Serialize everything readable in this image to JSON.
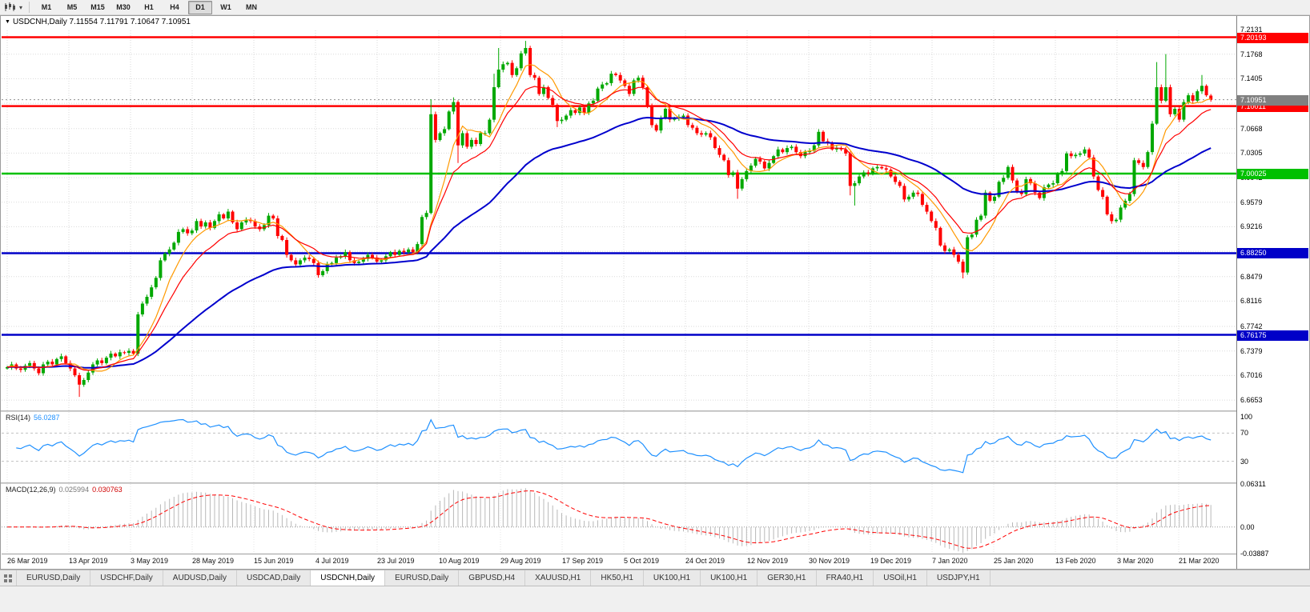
{
  "toolbar": {
    "timeframes": [
      {
        "label": "M1",
        "active": false
      },
      {
        "label": "M5",
        "active": false
      },
      {
        "label": "M15",
        "active": false
      },
      {
        "label": "M30",
        "active": false
      },
      {
        "label": "H1",
        "active": false
      },
      {
        "label": "H4",
        "active": false
      },
      {
        "label": "D1",
        "active": true
      },
      {
        "label": "W1",
        "active": false
      },
      {
        "label": "MN",
        "active": false
      }
    ]
  },
  "chart": {
    "ohlc_header": "USDCNH,Daily 7.11554 7.11791 7.10647 7.10951"
  },
  "chart_data": {
    "type": "candlestick",
    "symbol": "USDCNH",
    "timeframe": "Daily",
    "ohlc_display": {
      "open": "7.11554",
      "high": "7.11791",
      "low": "7.10647",
      "close": "7.10951"
    },
    "ylim": [
      6.65,
      7.212
    ],
    "y_ticks": [
      "7.2131",
      "7.1768",
      "7.1405",
      "7.1042",
      "7.0668",
      "7.0305",
      "6.9942",
      "6.9579",
      "6.9216",
      "6.8853",
      "6.8479",
      "6.8116",
      "6.7742",
      "6.7379",
      "6.7016",
      "6.6653"
    ],
    "x_labels": [
      "26 Mar 2019",
      "13 Apr 2019",
      "3 May 2019",
      "28 May 2019",
      "15 Jun 2019",
      "4 Jul 2019",
      "23 Jul 2019",
      "10 Aug 2019",
      "29 Aug 2019",
      "17 Sep 2019",
      "5 Oct 2019",
      "24 Oct 2019",
      "12 Nov 2019",
      "30 Nov 2019",
      "19 Dec 2019",
      "7 Jan 2020",
      "25 Jan 2020",
      "13 Feb 2020",
      "3 Mar 2020",
      "21 Mar 2020"
    ],
    "open_first": 6.712,
    "closes": [
      6.714,
      6.718,
      6.712,
      6.71,
      6.716,
      6.72,
      6.712,
      6.705,
      6.718,
      6.722,
      6.718,
      6.726,
      6.73,
      6.72,
      6.712,
      6.702,
      6.688,
      6.695,
      6.706,
      6.718,
      6.724,
      6.72,
      6.728,
      6.734,
      6.73,
      6.736,
      6.735,
      6.738,
      6.734,
      6.792,
      6.808,
      6.818,
      6.832,
      6.846,
      6.872,
      6.882,
      6.888,
      6.898,
      6.914,
      6.918,
      6.912,
      6.916,
      6.93,
      6.922,
      6.928,
      6.92,
      6.93,
      6.94,
      6.934,
      6.944,
      6.928,
      6.918,
      6.928,
      6.932,
      6.93,
      6.922,
      6.918,
      6.924,
      6.938,
      6.934,
      6.908,
      6.902,
      6.88,
      6.872,
      6.866,
      6.872,
      6.876,
      6.874,
      6.868,
      6.85,
      6.856,
      6.866,
      6.868,
      6.876,
      6.878,
      6.884,
      6.872,
      6.868,
      6.87,
      6.874,
      6.88,
      6.876,
      6.87,
      6.872,
      6.878,
      6.884,
      6.88,
      6.886,
      6.884,
      6.888,
      6.884,
      6.896,
      6.936,
      6.942,
      7.088,
      7.05,
      7.06,
      7.066,
      7.092,
      7.106,
      7.042,
      7.06,
      7.04,
      7.05,
      7.044,
      7.06,
      7.06,
      7.08,
      7.128,
      7.154,
      7.162,
      7.164,
      7.146,
      7.156,
      7.178,
      7.186,
      7.146,
      7.142,
      7.118,
      7.128,
      7.112,
      7.102,
      7.078,
      7.08,
      7.086,
      7.094,
      7.09,
      7.098,
      7.09,
      7.104,
      7.108,
      7.126,
      7.132,
      7.134,
      7.148,
      7.146,
      7.138,
      7.13,
      7.118,
      7.138,
      7.142,
      7.128,
      7.1,
      7.072,
      7.064,
      7.082,
      7.096,
      7.08,
      7.082,
      7.084,
      7.086,
      7.072,
      7.068,
      7.06,
      7.058,
      7.06,
      7.054,
      7.038,
      7.028,
      7.02,
      6.998,
      7.002,
      6.978,
      6.992,
      7.004,
      7.012,
      7.022,
      7.018,
      7.008,
      7.016,
      7.026,
      7.036,
      7.032,
      7.038,
      7.04,
      7.032,
      7.026,
      7.032,
      7.034,
      7.042,
      7.062,
      7.048,
      7.046,
      7.036,
      7.038,
      7.036,
      7.03,
      6.982,
      6.986,
      6.996,
      7.002,
      7.0,
      7.008,
      7.01,
      7.008,
      7.006,
      6.996,
      6.988,
      6.982,
      6.962,
      6.966,
      6.972,
      6.97,
      6.954,
      6.944,
      6.93,
      6.92,
      6.894,
      6.886,
      6.888,
      6.88,
      6.87,
      6.854,
      6.906,
      6.91,
      6.932,
      6.938,
      6.972,
      6.96,
      6.966,
      6.988,
      6.994,
      7.01,
      6.99,
      6.974,
      6.97,
      6.992,
      6.986,
      6.972,
      6.964,
      6.98,
      6.984,
      6.986,
      7.0,
      7.004,
      7.03,
      7.026,
      7.028,
      7.03,
      7.036,
      7.024,
      6.996,
      6.976,
      6.966,
      6.94,
      6.93,
      6.932,
      6.95,
      6.96,
      6.97,
      7.02,
      7.016,
      7.01,
      7.032,
      7.074,
      7.128,
      7.108,
      7.128,
      7.088,
      7.096,
      7.08,
      7.106,
      7.116,
      7.108,
      7.122,
      7.13,
      7.116,
      7.10951
    ],
    "overrides": {
      "16": {
        "l": 6.67
      },
      "94": {
        "h": 7.11,
        "l": 6.94
      },
      "99": {
        "h": 7.113
      },
      "100": {
        "l": 7.016
      },
      "108": {
        "h": 7.148
      },
      "109": {
        "h": 7.186
      },
      "115": {
        "h": 7.1965
      },
      "122": {
        "l": 7.069
      },
      "162": {
        "l": 6.963
      },
      "187": {
        "l": 6.968
      },
      "188": {
        "l": 6.953
      },
      "212": {
        "l": 6.8452
      },
      "255": {
        "h": 7.1651
      },
      "257": {
        "h": 7.177
      },
      "265": {
        "h": 7.146
      },
      "267": {
        "o": 7.11554,
        "h": 7.11791,
        "l": 7.10647
      }
    },
    "hlines": [
      {
        "value": 7.20193,
        "label": "7.20193",
        "color": "#ff0000"
      },
      {
        "value": 7.10011,
        "label": "7.10011",
        "color": "#ff0000"
      },
      {
        "value": 7.00025,
        "label": "7.00025",
        "color": "#00c000"
      },
      {
        "value": 6.8825,
        "label": "6.88250",
        "color": "#0000c8"
      },
      {
        "value": 6.76175,
        "label": "6.76175",
        "color": "#0000c8"
      }
    ],
    "current_price": {
      "value": 7.10951,
      "label": "7.10951",
      "color": "#808080"
    },
    "moving_averages": [
      {
        "name": "fast",
        "period": 8,
        "color": "#ff9900",
        "method": "sma"
      },
      {
        "name": "medium",
        "period": 14,
        "color": "#ff0000",
        "method": "ema"
      },
      {
        "name": "slow",
        "period": 50,
        "color": "#0000cd",
        "method": "ema"
      }
    ],
    "candle_colors": {
      "up": "#00a800",
      "down": "#ff0000"
    },
    "grid": true,
    "rsi": {
      "label": "RSI(14)",
      "value": "56.0287",
      "levels": [
        {
          "label": "100",
          "value": 100
        },
        {
          "label": "70",
          "value": 70
        },
        {
          "label": "30",
          "value": 30
        }
      ],
      "line_color": "#1e90ff"
    },
    "macd": {
      "label": "MACD(12,26,9)",
      "value_main": "0.025994",
      "value_signal": "0.030763",
      "levels": [
        {
          "label": "0.06311",
          "value": 0.06311
        },
        {
          "label": "0.00",
          "value": 0
        },
        {
          "label": "-0.03887",
          "value": -0.03887
        }
      ],
      "histogram_color": "#b8b8b8",
      "signal_color": "#ff0000"
    }
  },
  "tabs": {
    "items": [
      {
        "label": "EURUSD,Daily",
        "active": false
      },
      {
        "label": "USDCHF,Daily",
        "active": false
      },
      {
        "label": "AUDUSD,Daily",
        "active": false
      },
      {
        "label": "USDCAD,Daily",
        "active": false
      },
      {
        "label": "USDCNH,Daily",
        "active": true
      },
      {
        "label": "EURUSD,Daily",
        "active": false
      },
      {
        "label": "GBPUSD,H4",
        "active": false
      },
      {
        "label": "XAUUSD,H1",
        "active": false
      },
      {
        "label": "HK50,H1",
        "active": false
      },
      {
        "label": "UK100,H1",
        "active": false
      },
      {
        "label": "UK100,H1",
        "active": false
      },
      {
        "label": "GER30,H1",
        "active": false
      },
      {
        "label": "FRA40,H1",
        "active": false
      },
      {
        "label": "USOil,H1",
        "active": false
      },
      {
        "label": "USDJPY,H1",
        "active": false
      }
    ]
  }
}
